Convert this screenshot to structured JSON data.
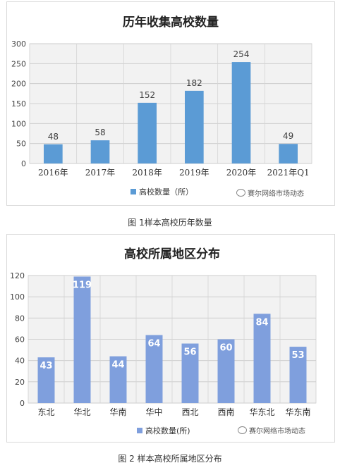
{
  "charts": [
    {
      "title": "历年收集高校数量",
      "legend": "高校数量（所）",
      "watermark": "赛尔网络市场动态",
      "caption": "图 1样本高校历年数量",
      "bar_color": "#5b9bd5",
      "label_color": "#404040"
    },
    {
      "title": "高校所属地区分布",
      "legend": "高校数量(所)",
      "watermark": "赛尔网络市场动态",
      "caption": "图 2 样本高校所属地区分布",
      "bar_color": "#7f9fdd",
      "label_color": "#ffffff"
    }
  ],
  "chart_data": [
    {
      "type": "bar",
      "title": "历年收集高校数量",
      "categories": [
        "2016年",
        "2017年",
        "2018年",
        "2019年",
        "2020年",
        "2021年Q1"
      ],
      "series": [
        {
          "name": "高校数量（所）",
          "values": [
            48,
            58,
            152,
            182,
            254,
            49
          ]
        }
      ],
      "ylim": [
        0,
        300
      ],
      "yticks": [
        0,
        50,
        100,
        150,
        200,
        250,
        300
      ],
      "grid": true,
      "legend_position": "bottom"
    },
    {
      "type": "bar",
      "title": "高校所属地区分布",
      "categories": [
        "东北",
        "华北",
        "华南",
        "华中",
        "西北",
        "西南",
        "华东北",
        "华东南"
      ],
      "series": [
        {
          "name": "高校数量(所)",
          "values": [
            43,
            119,
            44,
            64,
            56,
            60,
            84,
            53
          ]
        }
      ],
      "ylim": [
        0,
        120
      ],
      "yticks": [
        0,
        20,
        40,
        60,
        80,
        100,
        120
      ],
      "grid": true,
      "legend_position": "bottom"
    }
  ]
}
